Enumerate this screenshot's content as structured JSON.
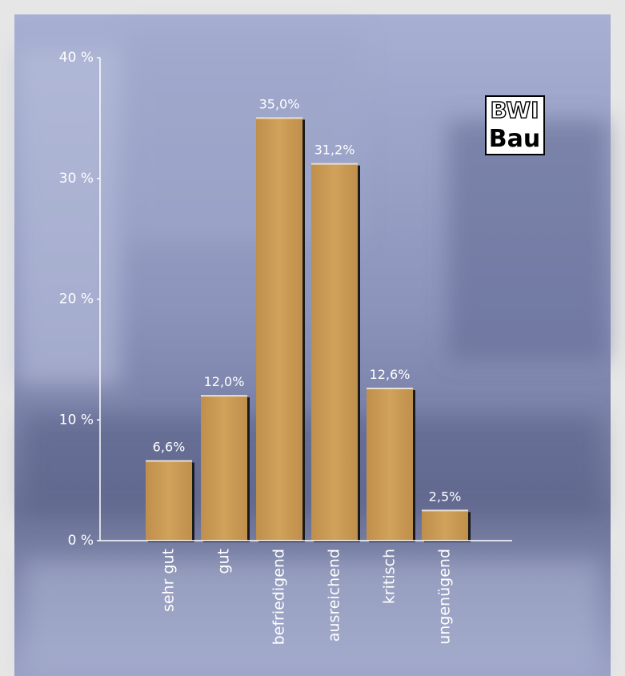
{
  "chart_data": {
    "type": "bar",
    "categories": [
      "sehr gut",
      "gut",
      "befriedigend",
      "ausreichend",
      "kritisch",
      "ungenügend"
    ],
    "values": [
      6.6,
      12.0,
      35.0,
      31.2,
      12.6,
      2.5
    ],
    "value_labels": [
      "6,6%",
      "12,0%",
      "35,0%",
      "31,2%",
      "12,6%",
      "2,5%"
    ],
    "color": "#c9994f",
    "ylim": [
      0,
      40
    ],
    "yticks": [
      {
        "value": 0,
        "label": "0 %"
      },
      {
        "value": 10,
        "label": "10 %"
      },
      {
        "value": 20,
        "label": "20 %"
      },
      {
        "value": 30,
        "label": "30 %"
      },
      {
        "value": 40,
        "label": "40 %"
      }
    ],
    "logo": [
      "BWI",
      "Bau"
    ]
  }
}
